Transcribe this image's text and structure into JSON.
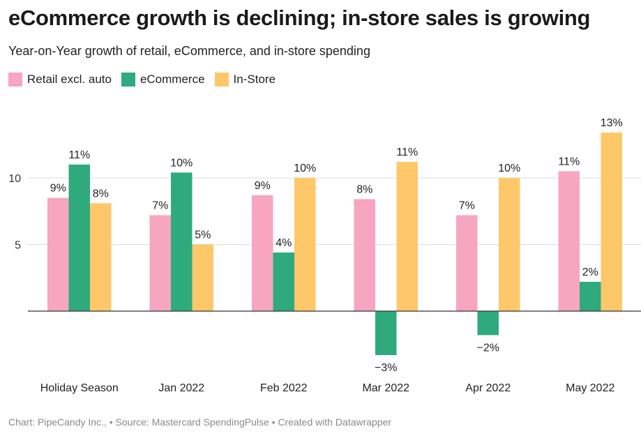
{
  "title": "eCommerce growth is declining; in-store sales is growing",
  "subtitle": "Year-on-Year growth of retail, eCommerce, and in-store spending",
  "footer": "Chart: PipeCandy Inc., • Source: Mastercard SpendingPulse • Created with Datawrapper",
  "chart_data": {
    "type": "bar",
    "categories": [
      "Holiday Season",
      "Jan 2022",
      "Feb 2022",
      "Mar 2022",
      "Apr 2022",
      "May 2022"
    ],
    "series": [
      {
        "name": "Retail excl. auto",
        "color": "#f7a6bf",
        "values": [
          8.5,
          7.2,
          8.7,
          8.4,
          7.2,
          10.5
        ],
        "labels": [
          "9%",
          "7%",
          "9%",
          "8%",
          "7%",
          "11%"
        ]
      },
      {
        "name": "eCommerce",
        "color": "#2faa7c",
        "values": [
          11.0,
          10.4,
          4.4,
          -3.3,
          -1.8,
          2.2
        ],
        "labels": [
          "11%",
          "10%",
          "4%",
          "−3%",
          "−2%",
          "2%"
        ]
      },
      {
        "name": "In-Store",
        "color": "#fec86a",
        "values": [
          8.1,
          5.0,
          10.0,
          11.2,
          10.0,
          13.4
        ],
        "labels": [
          "8%",
          "5%",
          "10%",
          "11%",
          "10%",
          "13%"
        ]
      }
    ],
    "y_ticks": [
      "5",
      "10"
    ],
    "y_tick_values": [
      5,
      10
    ],
    "ylim": [
      -5,
      15
    ],
    "grid": true,
    "legend": "top-left"
  }
}
